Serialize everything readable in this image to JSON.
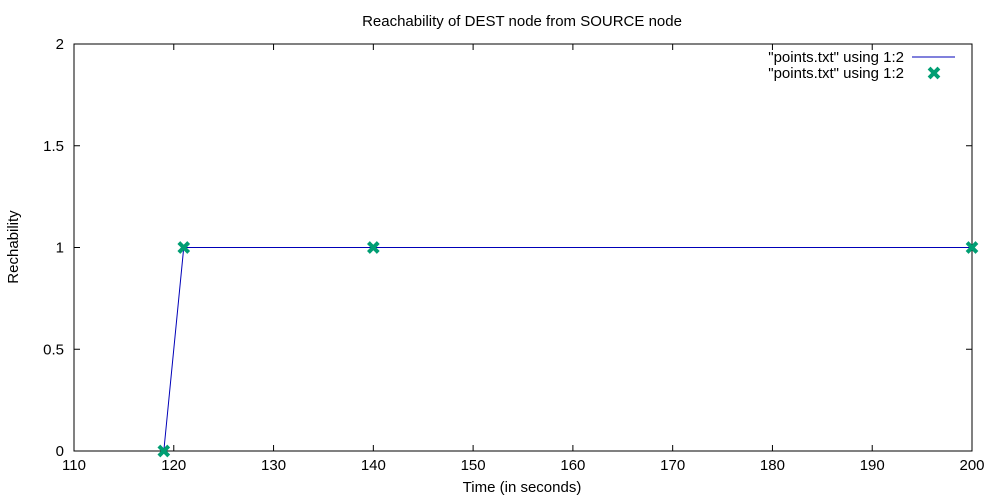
{
  "chart_data": {
    "type": "line",
    "title": "Reachability of DEST node from SOURCE node",
    "xlabel": "Time (in seconds)",
    "ylabel": "Rechability",
    "xlim": [
      110,
      200
    ],
    "ylim": [
      0,
      2
    ],
    "x_ticks": [
      110,
      120,
      130,
      140,
      150,
      160,
      170,
      180,
      190,
      200
    ],
    "y_ticks": [
      0,
      0.5,
      1,
      1.5,
      2
    ],
    "grid": false,
    "legend_position": "top-right",
    "series": [
      {
        "name": "\"points.txt\" using 1:2",
        "style": "line",
        "color": "#0000b8",
        "x": [
          119,
          121,
          140,
          200
        ],
        "y": [
          0,
          1,
          1,
          1
        ]
      },
      {
        "name": "\"points.txt\" using 1:2",
        "style": "points",
        "marker": "cross",
        "color": "#009e73",
        "x": [
          119,
          121,
          140,
          200
        ],
        "y": [
          0,
          1,
          1,
          1
        ]
      }
    ]
  }
}
